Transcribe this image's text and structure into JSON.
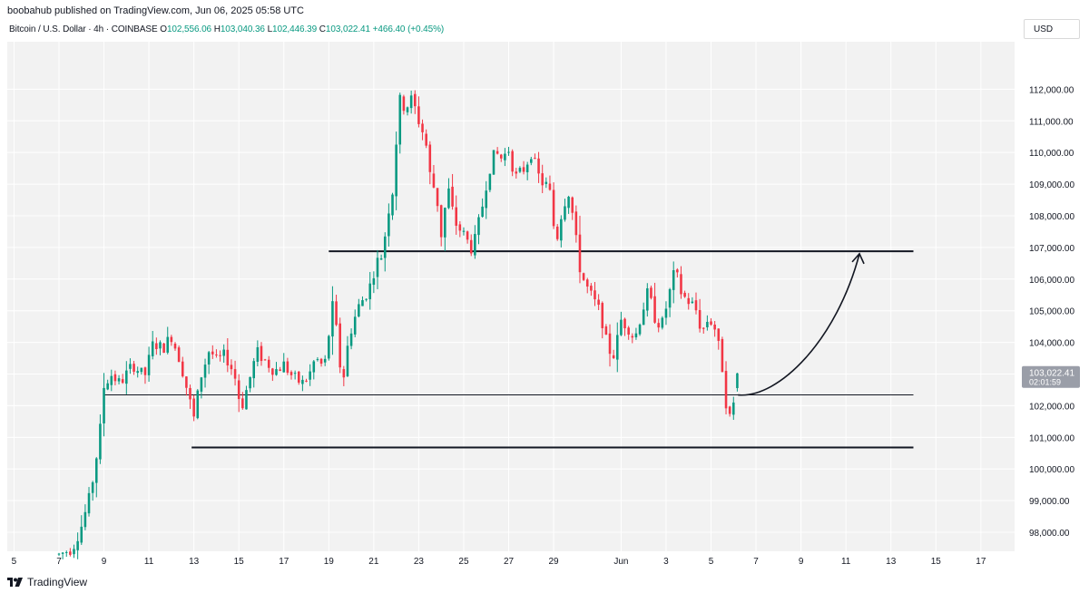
{
  "header": {
    "published": "boobahub published on TradingView.com, Jun 06, 2025 05:58 UTC"
  },
  "legend": {
    "symbol": "Bitcoin / U.S. Dollar · 4h · COINBASE",
    "open_label": "O",
    "open": "102,556.06",
    "high_label": "H",
    "high": "103,040.36",
    "low_label": "L",
    "low": "102,446.39",
    "close_label": "C",
    "close": "103,022.41",
    "change": "+466.40 (+0.45%)"
  },
  "currency": "USD",
  "brand": {
    "name": "TradingView"
  },
  "colors": {
    "up": "#089981",
    "down": "#f23645",
    "plot_bg": "#f2f2f2",
    "price_tag": "#9a9ea8",
    "line": "#131722",
    "grid": "#ffffff"
  },
  "chart_data": {
    "type": "candlestick",
    "title": "Bitcoin / U.S. Dollar · 4h · COINBASE",
    "timeframe": "4h",
    "exchange": "COINBASE",
    "ylim": [
      97400,
      113500
    ],
    "y_ticks": [
      98000,
      99000,
      100000,
      101000,
      102000,
      103000,
      104000,
      105000,
      106000,
      107000,
      108000,
      109000,
      110000,
      111000,
      112000
    ],
    "y_tick_labels": [
      "98,000.00",
      "99,000.00",
      "100,000.00",
      "101,000.00",
      "102,000.00",
      "103,000.00",
      "104,000.00",
      "105,000.00",
      "106,000.00",
      "107,000.00",
      "108,000.00",
      "109,000.00",
      "110,000.00",
      "111,000.00",
      "112,000.00"
    ],
    "x_ticks": [
      "5",
      "7",
      "9",
      "11",
      "13",
      "15",
      "17",
      "19",
      "21",
      "23",
      "25",
      "27",
      "29",
      "Jun",
      "3",
      "5",
      "7",
      "9",
      "11",
      "13",
      "15",
      "17"
    ],
    "x_tick_day_index": [
      0,
      2,
      4,
      6,
      8,
      10,
      12,
      14,
      16,
      18,
      20,
      22,
      24,
      27,
      29,
      31,
      33,
      35,
      37,
      39,
      41,
      43
    ],
    "x_domain_days": [
      -0.3,
      44.5
    ],
    "candles_per_day": 6,
    "first_candle_day": 2.0,
    "anchors": [
      [
        2.0,
        97300
      ],
      [
        2.6,
        97500
      ],
      [
        3.0,
        98200
      ],
      [
        3.4,
        99200
      ],
      [
        3.8,
        101000
      ],
      [
        4.0,
        102600
      ],
      [
        4.3,
        103000
      ],
      [
        4.7,
        102700
      ],
      [
        5.3,
        103300
      ],
      [
        5.8,
        102900
      ],
      [
        6.2,
        104000
      ],
      [
        6.6,
        103800
      ],
      [
        7.0,
        104200
      ],
      [
        7.4,
        103400
      ],
      [
        7.7,
        102500
      ],
      [
        8.0,
        101600
      ],
      [
        8.3,
        102900
      ],
      [
        8.7,
        103800
      ],
      [
        9.0,
        103400
      ],
      [
        9.4,
        103600
      ],
      [
        9.8,
        103000
      ],
      [
        10.1,
        101900
      ],
      [
        10.5,
        102900
      ],
      [
        10.8,
        103700
      ],
      [
        11.2,
        103400
      ],
      [
        11.6,
        103100
      ],
      [
        12.0,
        103300
      ],
      [
        12.4,
        102900
      ],
      [
        12.8,
        102700
      ],
      [
        13.1,
        102900
      ],
      [
        13.4,
        103500
      ],
      [
        13.8,
        103200
      ],
      [
        14.2,
        105300
      ],
      [
        14.6,
        102600
      ],
      [
        14.9,
        104200
      ],
      [
        15.3,
        105100
      ],
      [
        15.8,
        105700
      ],
      [
        16.1,
        106500
      ],
      [
        16.4,
        106800
      ],
      [
        16.6,
        108000
      ],
      [
        16.9,
        109000
      ],
      [
        17.1,
        111700
      ],
      [
        17.4,
        111400
      ],
      [
        17.7,
        111700
      ],
      [
        18.0,
        111000
      ],
      [
        18.3,
        110400
      ],
      [
        18.5,
        109300
      ],
      [
        18.8,
        108600
      ],
      [
        19.0,
        107400
      ],
      [
        19.3,
        108900
      ],
      [
        19.6,
        107800
      ],
      [
        20.0,
        107400
      ],
      [
        20.4,
        106900
      ],
      [
        20.8,
        108200
      ],
      [
        21.1,
        109400
      ],
      [
        21.4,
        110000
      ],
      [
        21.7,
        109800
      ],
      [
        22.0,
        110100
      ],
      [
        22.3,
        109200
      ],
      [
        22.7,
        109500
      ],
      [
        23.0,
        110000
      ],
      [
        23.4,
        109100
      ],
      [
        23.8,
        108900
      ],
      [
        24.1,
        107100
      ],
      [
        24.4,
        108300
      ],
      [
        24.7,
        108800
      ],
      [
        25.0,
        107200
      ],
      [
        25.2,
        106200
      ],
      [
        25.5,
        105700
      ],
      [
        25.8,
        105300
      ],
      [
        26.1,
        104900
      ],
      [
        26.4,
        103800
      ],
      [
        26.7,
        103600
      ],
      [
        27.0,
        104700
      ],
      [
        27.3,
        104500
      ],
      [
        27.6,
        104100
      ],
      [
        27.9,
        104900
      ],
      [
        28.2,
        105600
      ],
      [
        28.5,
        104800
      ],
      [
        28.8,
        104500
      ],
      [
        29.0,
        105100
      ],
      [
        29.2,
        105700
      ],
      [
        29.4,
        106300
      ],
      [
        29.7,
        105500
      ],
      [
        30.0,
        105300
      ],
      [
        30.3,
        105100
      ],
      [
        30.6,
        104300
      ],
      [
        30.9,
        104800
      ],
      [
        31.2,
        104400
      ],
      [
        31.5,
        103200
      ],
      [
        31.7,
        101900
      ],
      [
        31.9,
        101500
      ],
      [
        32.1,
        102600
      ],
      [
        32.2,
        103020
      ]
    ],
    "last_candle": {
      "open": 102556.06,
      "high": 103040.36,
      "low": 102446.39,
      "close": 103022.41
    },
    "current_price": {
      "value": 103022.41,
      "label": "103,022.41",
      "countdown": "02:01:59"
    },
    "levels": [
      {
        "name": "resistance",
        "price": 106880,
        "from_day": 14.0,
        "to_day": 40.0,
        "weight": "heavy"
      },
      {
        "name": "mid-support",
        "price": 102340,
        "from_day": 4.0,
        "to_day": 40.0,
        "weight": "light"
      },
      {
        "name": "support",
        "price": 100680,
        "from_day": 7.9,
        "to_day": 40.0,
        "weight": "heavy"
      }
    ],
    "projection_arrow": {
      "from": [
        32.2,
        102340
      ],
      "to": [
        37.6,
        106800
      ],
      "direction": "up"
    }
  }
}
